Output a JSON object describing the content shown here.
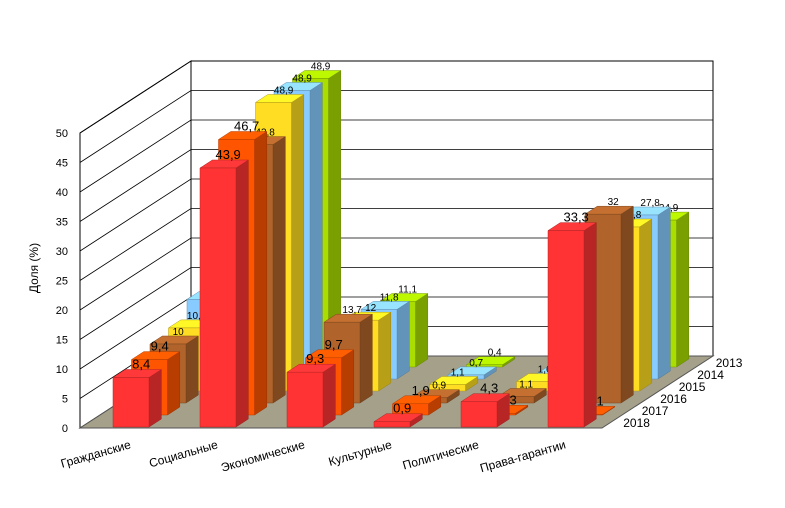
{
  "chart_data": {
    "type": "bar",
    "subtype": "3d-clustered-depth",
    "ylabel": "Доля (%)",
    "ylim": [
      0,
      50
    ],
    "yticks": [
      0,
      5,
      10,
      15,
      20,
      25,
      30,
      35,
      40,
      45,
      50
    ],
    "grid": true,
    "categories": [
      "Гражданские",
      "Социальные",
      "Экономические",
      "Культурные",
      "Политические",
      "Права-гарантии"
    ],
    "series": [
      {
        "name": "2018",
        "color": "#ff3333",
        "values": [
          8.4,
          43.9,
          9.3,
          0.9,
          4.3,
          33.3
        ],
        "labels": [
          "8,4",
          "43,9",
          "9,3",
          "0,9",
          "4,3",
          "33,3"
        ]
      },
      {
        "name": "2017",
        "color": "#ff5500",
        "values": [
          9.4,
          46.7,
          9.7,
          1.9,
          0.3,
          0.1
        ],
        "labels": [
          "9,4",
          "46,7",
          "9,7",
          "1,9",
          "0,3",
          "0,1"
        ]
      },
      {
        "name": "2016",
        "color": "#b0642b",
        "values": [
          10,
          43.8,
          13.7,
          0.9,
          1.1,
          32
        ],
        "labels": [
          "10",
          "43,8",
          "13,7",
          "0,9",
          "1,1",
          "32"
        ]
      },
      {
        "name": "2015",
        "color": "#ffdd22",
        "values": [
          10.7,
          48.9,
          12,
          1.1,
          1.6,
          27.8
        ],
        "labels": [
          "10,7",
          "48,9",
          "12",
          "1,1",
          "1,6",
          "27,8"
        ]
      },
      {
        "name": "2014",
        "color": "#88ccff",
        "values": [
          13.5,
          48.9,
          11.8,
          0.7,
          0.7,
          27.8
        ],
        "labels": [
          "13,5",
          "48,9",
          "11,8",
          "0,7",
          "",
          "27,8"
        ]
      },
      {
        "name": "2013",
        "color": "#aadd00",
        "values": [
          13.5,
          48.9,
          11.1,
          0.4,
          0.4,
          24.9
        ],
        "labels": [
          "",
          "48,9",
          "11,1",
          "0,4",
          "",
          "24,9"
        ]
      }
    ]
  }
}
